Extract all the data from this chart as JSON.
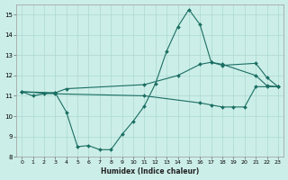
{
  "xlabel": "Humidex (Indice chaleur)",
  "bg_color": "#cceee8",
  "line_color": "#1a6e62",
  "grid_color": "#aad8d0",
  "xlim": [
    -0.5,
    23.5
  ],
  "ylim": [
    8,
    15.5
  ],
  "xticks": [
    0,
    1,
    2,
    3,
    4,
    5,
    6,
    7,
    8,
    9,
    10,
    11,
    12,
    13,
    14,
    15,
    16,
    17,
    18,
    19,
    20,
    21,
    22,
    23
  ],
  "yticks": [
    8,
    9,
    10,
    11,
    12,
    13,
    14,
    15
  ],
  "curve_x": [
    0,
    1,
    2,
    3,
    4,
    5,
    6,
    7,
    8,
    9,
    10,
    11,
    12,
    13,
    14,
    15,
    16,
    17,
    18,
    21,
    22,
    23
  ],
  "curve_y": [
    11.2,
    11.0,
    11.1,
    11.15,
    10.2,
    8.5,
    8.55,
    8.35,
    8.35,
    9.1,
    9.75,
    10.5,
    11.6,
    13.2,
    14.4,
    15.25,
    14.5,
    12.65,
    12.55,
    12.0,
    11.5,
    11.45
  ],
  "upper_x": [
    0,
    3,
    4,
    11,
    14,
    16,
    17,
    18,
    21,
    22,
    23
  ],
  "upper_y": [
    11.2,
    11.15,
    11.35,
    11.55,
    12.0,
    12.55,
    12.65,
    12.5,
    12.6,
    11.9,
    11.45
  ],
  "lower_x": [
    0,
    3,
    11,
    16,
    17,
    18,
    19,
    20,
    21,
    22,
    23
  ],
  "lower_y": [
    11.2,
    11.1,
    11.0,
    10.65,
    10.55,
    10.45,
    10.45,
    10.45,
    11.45,
    11.45,
    11.45
  ]
}
